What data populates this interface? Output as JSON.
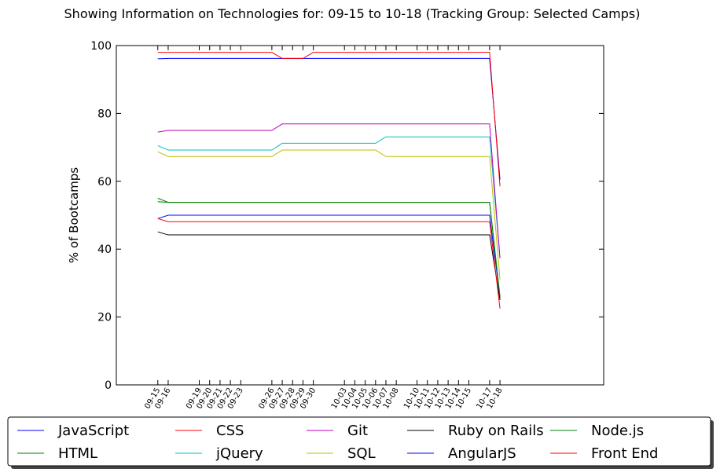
{
  "chart_data": {
    "type": "line",
    "title": "Showing Information on Technologies for: 09-15 to 10-18 (Tracking Group: Selected Camps)",
    "ylabel": "% of Bootcamps",
    "xlabel": "",
    "ylim": [
      0,
      100
    ],
    "yticks": [
      "0",
      "20",
      "40",
      "60",
      "80",
      "100"
    ],
    "x_day_range": [
      0,
      47
    ],
    "xticks": [
      {
        "label": "09-15",
        "day": 4
      },
      {
        "label": "09-16",
        "day": 5
      },
      {
        "label": "09-19",
        "day": 8
      },
      {
        "label": "09-20",
        "day": 9
      },
      {
        "label": "09-21",
        "day": 10
      },
      {
        "label": "09-22",
        "day": 11
      },
      {
        "label": "09-23",
        "day": 12
      },
      {
        "label": "09-26",
        "day": 15
      },
      {
        "label": "09-27",
        "day": 16
      },
      {
        "label": "09-28",
        "day": 17
      },
      {
        "label": "09-29",
        "day": 18
      },
      {
        "label": "09-30",
        "day": 19
      },
      {
        "label": "10-03",
        "day": 22
      },
      {
        "label": "10-04",
        "day": 23
      },
      {
        "label": "10-05",
        "day": 24
      },
      {
        "label": "10-06",
        "day": 25
      },
      {
        "label": "10-07",
        "day": 26
      },
      {
        "label": "10-08",
        "day": 27
      },
      {
        "label": "10-10",
        "day": 29
      },
      {
        "label": "10-11",
        "day": 30
      },
      {
        "label": "10-12",
        "day": 31
      },
      {
        "label": "10-13",
        "day": 32
      },
      {
        "label": "10-14",
        "day": 33
      },
      {
        "label": "10-15",
        "day": 34
      },
      {
        "label": "10-17",
        "day": 36
      },
      {
        "label": "10-18",
        "day": 37
      }
    ],
    "x_days": [
      4,
      5,
      8,
      9,
      10,
      11,
      12,
      15,
      16,
      17,
      18,
      19,
      22,
      23,
      24,
      25,
      26,
      27,
      29,
      30,
      31,
      32,
      33,
      34,
      36,
      37
    ],
    "series": [
      {
        "name": "JavaScript",
        "color": "#0000ff",
        "values": [
          96.1,
          96.2,
          96.2,
          96.2,
          96.2,
          96.2,
          96.2,
          96.2,
          96.2,
          96.2,
          96.2,
          96.2,
          96.2,
          96.2,
          96.2,
          96.2,
          96.2,
          96.2,
          96.2,
          96.2,
          96.2,
          96.2,
          96.2,
          96.2,
          96.2,
          60.5
        ]
      },
      {
        "name": "HTML",
        "color": "#008000",
        "values": [
          55.0,
          53.8,
          53.8,
          53.8,
          53.8,
          53.8,
          53.8,
          53.8,
          53.8,
          53.8,
          53.8,
          53.8,
          53.8,
          53.8,
          53.8,
          53.8,
          53.8,
          53.8,
          53.8,
          53.8,
          53.8,
          53.8,
          53.8,
          53.8,
          53.8,
          25.5
        ]
      },
      {
        "name": "CSS",
        "color": "#ff0000",
        "values": [
          98.0,
          98.0,
          98.0,
          98.0,
          98.0,
          98.0,
          98.0,
          98.0,
          96.2,
          96.2,
          96.2,
          98.0,
          98.0,
          98.0,
          98.0,
          98.0,
          98.0,
          98.0,
          98.0,
          98.0,
          98.0,
          98.0,
          98.0,
          98.0,
          98.0,
          58.5
        ]
      },
      {
        "name": "jQuery",
        "color": "#00bfbf",
        "values": [
          70.5,
          69.2,
          69.2,
          69.2,
          69.2,
          69.2,
          69.2,
          69.2,
          71.2,
          71.2,
          71.2,
          71.2,
          71.2,
          71.2,
          71.2,
          71.2,
          73.1,
          73.1,
          73.1,
          73.1,
          73.1,
          73.1,
          73.1,
          73.1,
          73.1,
          37.3
        ]
      },
      {
        "name": "Git",
        "color": "#bf00bf",
        "values": [
          74.5,
          75.0,
          75.0,
          75.0,
          75.0,
          75.0,
          75.0,
          75.0,
          76.9,
          76.9,
          76.9,
          76.9,
          76.9,
          76.9,
          76.9,
          76.9,
          76.9,
          76.9,
          76.9,
          76.9,
          76.9,
          76.9,
          76.9,
          76.9,
          76.9,
          37.3
        ]
      },
      {
        "name": "SQL",
        "color": "#bfbf00",
        "values": [
          68.7,
          67.3,
          67.3,
          67.3,
          67.3,
          67.3,
          67.3,
          67.3,
          69.2,
          69.2,
          69.2,
          69.2,
          69.2,
          69.2,
          69.2,
          69.2,
          67.3,
          67.3,
          67.3,
          67.3,
          67.3,
          67.3,
          67.3,
          67.3,
          67.3,
          31.0
        ]
      },
      {
        "name": "Ruby on Rails",
        "color": "#000000",
        "values": [
          45.1,
          44.2,
          44.2,
          44.2,
          44.2,
          44.2,
          44.2,
          44.2,
          44.2,
          44.2,
          44.2,
          44.2,
          44.2,
          44.2,
          44.2,
          44.2,
          44.2,
          44.2,
          44.2,
          44.2,
          44.2,
          44.2,
          44.2,
          44.2,
          44.2,
          25.0
        ]
      },
      {
        "name": "AngularJS",
        "color": "#0000ff",
        "values": [
          49.0,
          50.0,
          50.0,
          50.0,
          50.0,
          50.0,
          50.0,
          50.0,
          50.0,
          50.0,
          50.0,
          50.0,
          50.0,
          50.0,
          50.0,
          50.0,
          50.0,
          50.0,
          50.0,
          50.0,
          50.0,
          50.0,
          50.0,
          50.0,
          50.0,
          26.0
        ]
      },
      {
        "name": "Node.js",
        "color": "#008000",
        "values": [
          54.0,
          53.8,
          53.8,
          53.8,
          53.8,
          53.8,
          53.8,
          53.8,
          53.8,
          53.8,
          53.8,
          53.8,
          53.8,
          53.8,
          53.8,
          53.8,
          53.8,
          53.8,
          53.8,
          53.8,
          53.8,
          53.8,
          53.8,
          53.8,
          53.8,
          26.0
        ]
      },
      {
        "name": "Front End",
        "color": "#ff0000",
        "values": [
          49.0,
          48.1,
          48.1,
          48.1,
          48.1,
          48.1,
          48.1,
          48.1,
          48.1,
          48.1,
          48.1,
          48.1,
          48.1,
          48.1,
          48.1,
          48.1,
          48.1,
          48.1,
          48.1,
          48.1,
          48.1,
          48.1,
          48.1,
          48.1,
          48.1,
          22.5
        ]
      }
    ],
    "legend": {
      "placement": "bottom",
      "columns": 5
    }
  }
}
